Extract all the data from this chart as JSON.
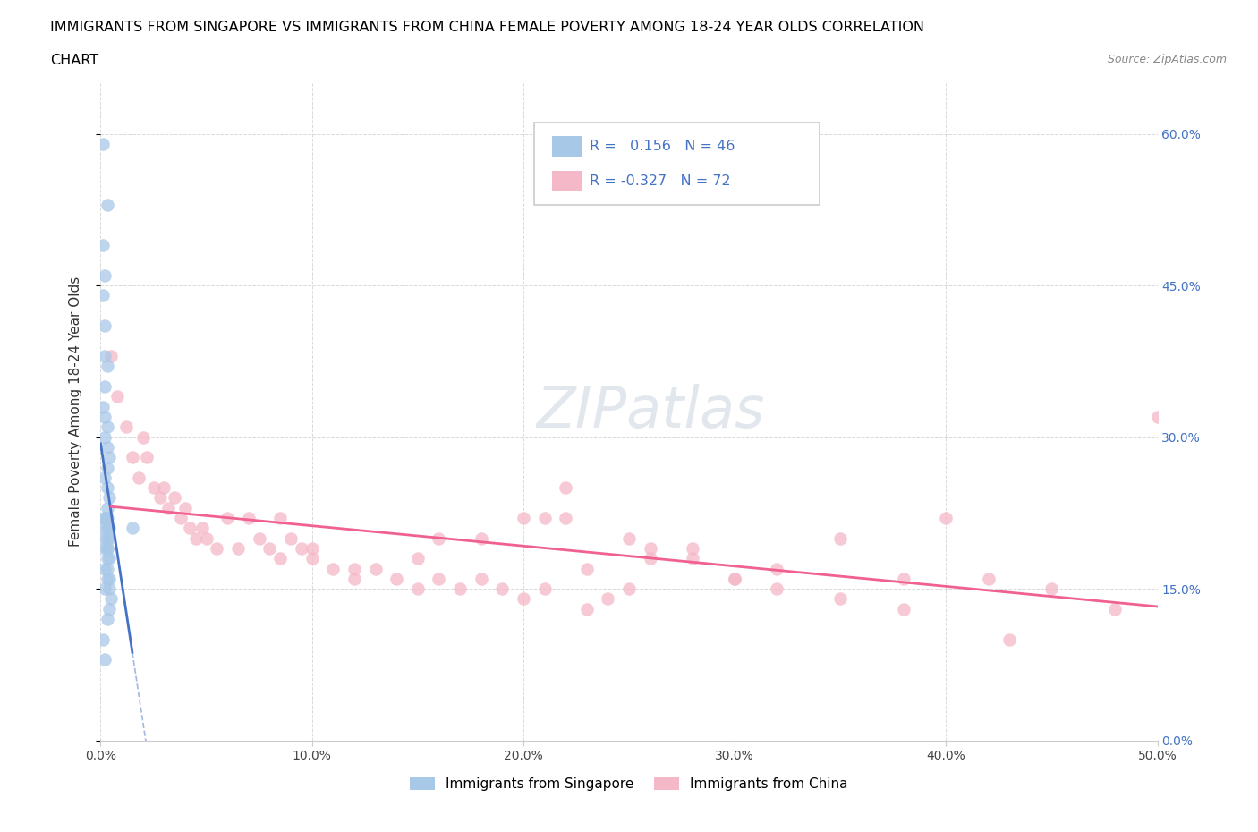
{
  "title_line1": "IMMIGRANTS FROM SINGAPORE VS IMMIGRANTS FROM CHINA FEMALE POVERTY AMONG 18-24 YEAR OLDS CORRELATION",
  "title_line2": "CHART",
  "source_text": "Source: ZipAtlas.com",
  "ylabel": "Female Poverty Among 18-24 Year Olds",
  "xlim": [
    0.0,
    0.5
  ],
  "ylim": [
    0.0,
    0.65
  ],
  "xticks": [
    0.0,
    0.1,
    0.2,
    0.3,
    0.4,
    0.5
  ],
  "xticklabels": [
    "0.0%",
    "10.0%",
    "20.0%",
    "30.0%",
    "40.0%",
    "50.0%"
  ],
  "yticks": [
    0.0,
    0.15,
    0.3,
    0.45,
    0.6
  ],
  "yticklabels": [
    "0.0%",
    "15.0%",
    "30.0%",
    "45.0%",
    "60.0%"
  ],
  "right_ytick_color": "#4472c4",
  "legend_label1": "Immigrants from Singapore",
  "legend_label2": "Immigrants from China",
  "r1": 0.156,
  "n1": 46,
  "r2": -0.327,
  "n2": 72,
  "color_sg": "#a8c8e8",
  "color_cn": "#f4b8c8",
  "trendline_sg": "#4472c4",
  "trendline_cn": "#f06090",
  "watermark": "ZIPatlas",
  "sg_x": [
    0.001,
    0.003,
    0.001,
    0.002,
    0.001,
    0.002,
    0.002,
    0.003,
    0.002,
    0.001,
    0.002,
    0.003,
    0.002,
    0.003,
    0.004,
    0.003,
    0.002,
    0.003,
    0.004,
    0.003,
    0.002,
    0.003,
    0.002,
    0.001,
    0.003,
    0.004,
    0.003,
    0.002,
    0.004,
    0.003,
    0.002,
    0.003,
    0.004,
    0.003,
    0.002,
    0.003,
    0.004,
    0.003,
    0.002,
    0.004,
    0.005,
    0.004,
    0.003,
    0.015,
    0.001,
    0.002
  ],
  "sg_y": [
    0.59,
    0.53,
    0.49,
    0.46,
    0.44,
    0.41,
    0.38,
    0.37,
    0.35,
    0.33,
    0.32,
    0.31,
    0.3,
    0.29,
    0.28,
    0.27,
    0.26,
    0.25,
    0.24,
    0.23,
    0.22,
    0.22,
    0.22,
    0.21,
    0.21,
    0.21,
    0.2,
    0.2,
    0.2,
    0.19,
    0.19,
    0.19,
    0.18,
    0.18,
    0.17,
    0.17,
    0.16,
    0.16,
    0.15,
    0.15,
    0.14,
    0.13,
    0.12,
    0.21,
    0.1,
    0.08
  ],
  "cn_x": [
    0.005,
    0.008,
    0.012,
    0.015,
    0.018,
    0.02,
    0.022,
    0.025,
    0.028,
    0.03,
    0.032,
    0.035,
    0.038,
    0.04,
    0.042,
    0.045,
    0.048,
    0.05,
    0.055,
    0.06,
    0.065,
    0.07,
    0.075,
    0.08,
    0.085,
    0.09,
    0.095,
    0.1,
    0.11,
    0.12,
    0.13,
    0.14,
    0.15,
    0.16,
    0.17,
    0.18,
    0.19,
    0.2,
    0.21,
    0.22,
    0.23,
    0.24,
    0.25,
    0.26,
    0.28,
    0.3,
    0.32,
    0.35,
    0.38,
    0.4,
    0.42,
    0.45,
    0.48,
    0.5,
    0.15,
    0.2,
    0.25,
    0.1,
    0.18,
    0.23,
    0.28,
    0.32,
    0.35,
    0.12,
    0.085,
    0.16,
    0.21,
    0.26,
    0.3,
    0.38,
    0.43,
    0.22
  ],
  "cn_y": [
    0.38,
    0.34,
    0.31,
    0.28,
    0.26,
    0.3,
    0.28,
    0.25,
    0.24,
    0.25,
    0.23,
    0.24,
    0.22,
    0.23,
    0.21,
    0.2,
    0.21,
    0.2,
    0.19,
    0.22,
    0.19,
    0.22,
    0.2,
    0.19,
    0.18,
    0.2,
    0.19,
    0.18,
    0.17,
    0.16,
    0.17,
    0.16,
    0.15,
    0.16,
    0.15,
    0.16,
    0.15,
    0.14,
    0.15,
    0.22,
    0.13,
    0.14,
    0.15,
    0.18,
    0.18,
    0.16,
    0.15,
    0.14,
    0.13,
    0.22,
    0.16,
    0.15,
    0.13,
    0.32,
    0.18,
    0.22,
    0.2,
    0.19,
    0.2,
    0.17,
    0.19,
    0.17,
    0.2,
    0.17,
    0.22,
    0.2,
    0.22,
    0.19,
    0.16,
    0.16,
    0.1,
    0.25
  ]
}
